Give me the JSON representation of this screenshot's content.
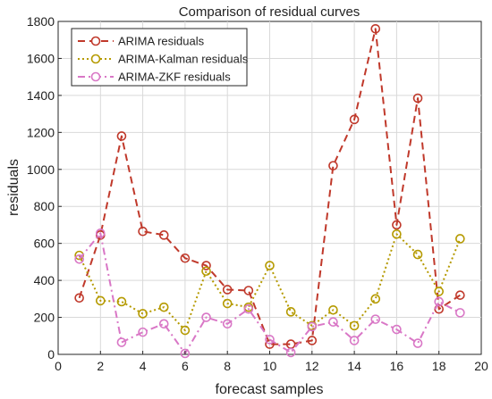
{
  "chart_data": {
    "type": "line",
    "title": "Comparison of residual curves",
    "xlabel": "forecast samples",
    "ylabel": "residuals",
    "xlim": [
      0,
      20
    ],
    "ylim": [
      0,
      1800
    ],
    "xticks": [
      "0",
      "2",
      "4",
      "6",
      "8",
      "10",
      "12",
      "14",
      "16",
      "18",
      "20"
    ],
    "yticks": [
      "0",
      "200",
      "400",
      "600",
      "800",
      "1000",
      "1200",
      "1400",
      "1600",
      "1800"
    ],
    "grid": true,
    "legend_position": "top-left",
    "x": [
      1,
      2,
      3,
      4,
      5,
      6,
      7,
      8,
      9,
      10,
      11,
      12,
      13,
      14,
      15,
      16,
      17,
      18,
      19
    ],
    "series": [
      {
        "name": "ARIMA residuals",
        "color": "#c0392b",
        "line_style": "dashed",
        "marker": "circle",
        "values": [
          305,
          645,
          1180,
          665,
          645,
          520,
          480,
          350,
          345,
          55,
          55,
          75,
          1020,
          1270,
          1760,
          700,
          1385,
          245,
          320
        ]
      },
      {
        "name": "ARIMA-Kalman residuals",
        "color": "#b59a00",
        "line_style": "dotted",
        "marker": "circle",
        "values": [
          535,
          290,
          285,
          220,
          255,
          130,
          450,
          275,
          255,
          480,
          230,
          155,
          240,
          155,
          300,
          650,
          540,
          340,
          625
        ]
      },
      {
        "name": "ARIMA-ZKF residuals",
        "color": "#d977c6",
        "line_style": "dashdot",
        "marker": "circle",
        "values": [
          515,
          655,
          65,
          120,
          165,
          5,
          200,
          165,
          245,
          80,
          10,
          150,
          175,
          75,
          190,
          135,
          60,
          285,
          225
        ]
      }
    ]
  }
}
